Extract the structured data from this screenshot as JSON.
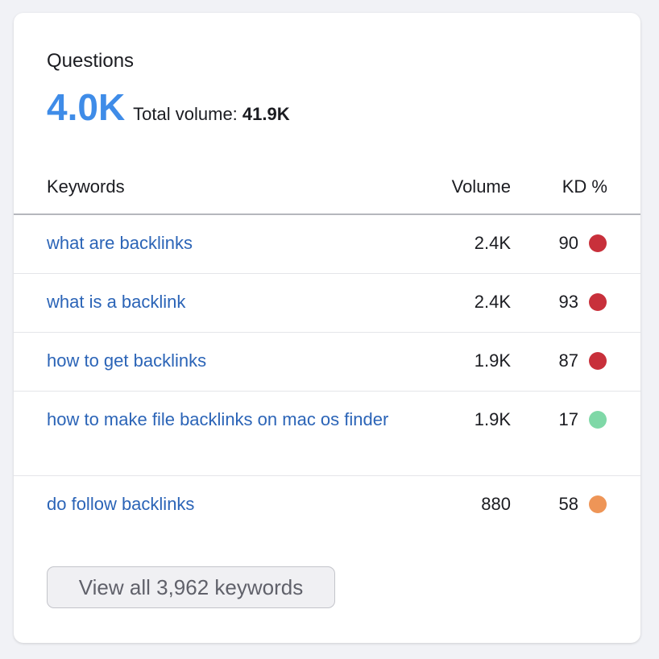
{
  "widget": {
    "title": "Questions",
    "count": "4.0K",
    "total_volume_label": "Total volume:",
    "total_volume_value": "41.9K"
  },
  "table": {
    "headers": {
      "keyword": "Keywords",
      "volume": "Volume",
      "kd": "KD %"
    },
    "rows": [
      {
        "keyword": "what are backlinks",
        "volume": "2.4K",
        "kd": "90",
        "kd_color": "#c8303b"
      },
      {
        "keyword": "what is a backlink",
        "volume": "2.4K",
        "kd": "93",
        "kd_color": "#c8303b"
      },
      {
        "keyword": "how to get backlinks",
        "volume": "1.9K",
        "kd": "87",
        "kd_color": "#c8303b"
      },
      {
        "keyword": "how to make file backlinks on mac os finder",
        "volume": "1.9K",
        "kd": "17",
        "kd_color": "#7fd8a7"
      },
      {
        "keyword": "do follow backlinks",
        "volume": "880",
        "kd": "58",
        "kd_color": "#ee9557"
      }
    ]
  },
  "view_all_button": "View all 3,962 keywords"
}
